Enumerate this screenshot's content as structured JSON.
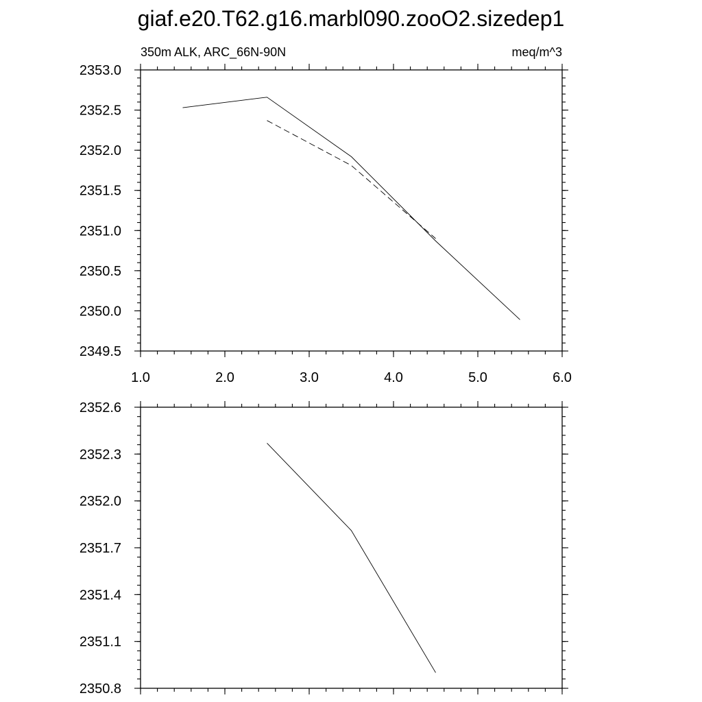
{
  "figure": {
    "title": "giaf.e20.T62.g16.marbl090.zooO2.sizedep1"
  },
  "chart_data": [
    {
      "type": "line",
      "left_label": "350m ALK, ARC_66N-90N",
      "right_label": "meq/m^3",
      "xlim": [
        1.0,
        6.0
      ],
      "ylim": [
        2349.5,
        2353.0
      ],
      "x_ticks": [
        "1.0",
        "2.0",
        "3.0",
        "4.0",
        "5.0",
        "6.0"
      ],
      "x_ticks_labeled": true,
      "y_ticks": [
        "2349.5",
        "2350.0",
        "2350.5",
        "2351.0",
        "2351.5",
        "2352.0",
        "2352.5",
        "2353.0"
      ],
      "series": [
        {
          "style": "solid",
          "x": [
            1.5,
            2.5,
            3.5,
            4.5,
            5.5
          ],
          "y": [
            2352.53,
            2352.66,
            2351.92,
            2350.87,
            2349.89
          ]
        },
        {
          "style": "dashed",
          "x": [
            2.5,
            3.5,
            4.5
          ],
          "y": [
            2352.37,
            2351.81,
            2350.9
          ]
        }
      ]
    },
    {
      "type": "line",
      "left_label": "",
      "right_label": "",
      "xlim": [
        1.0,
        6.0
      ],
      "ylim": [
        2350.8,
        2352.6
      ],
      "x_ticks": [
        "1.0",
        "2.0",
        "3.0",
        "4.0",
        "5.0",
        "6.0"
      ],
      "x_ticks_labeled": false,
      "y_ticks": [
        "2350.8",
        "2351.1",
        "2351.4",
        "2351.7",
        "2352.0",
        "2352.3",
        "2352.6"
      ],
      "series": [
        {
          "style": "solid",
          "x": [
            2.5,
            3.5,
            4.5
          ],
          "y": [
            2352.37,
            2351.81,
            2350.9
          ]
        }
      ]
    }
  ]
}
